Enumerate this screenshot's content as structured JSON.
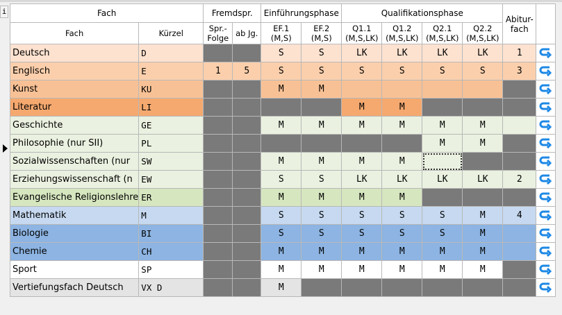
{
  "corner_label": "i",
  "header": {
    "fach_group": "Fach",
    "fach": "Fach",
    "kuerzel": "Kürzel",
    "fremdspr": "Fremdspr.",
    "spr_folge_1": "Spr.-",
    "spr_folge_2": "Folge",
    "ab_jg": "ab Jg.",
    "einfuehrung": "Einführungsphase",
    "ef1_a": "EF.1",
    "ef1_b": "(M,S)",
    "ef2_a": "EF.2",
    "ef2_b": "(M,S)",
    "qualifikation": "Qualifikationsphase",
    "q11_a": "Q1.1",
    "q11_b": "(M,S,LK)",
    "q12_a": "Q1.2",
    "q12_b": "(M,S,LK)",
    "q21_a": "Q2.1",
    "q21_b": "(M,S,LK)",
    "q22_a": "Q2.2",
    "q22_b": "(M,S,LK)",
    "abitur_1": "Abitur-",
    "abitur_2": "fach"
  },
  "rows": [
    {
      "fach": "Deutsch",
      "kz": "D",
      "sf": "",
      "jg": "",
      "ef1": "S",
      "ef2": "S",
      "q11": "LK",
      "q12": "LK",
      "q21": "LK",
      "q22": "LK",
      "abi": "1",
      "bg": "#fde2d0"
    },
    {
      "fach": "Englisch",
      "kz": "E",
      "sf": "1",
      "jg": "5",
      "ef1": "S",
      "ef2": "S",
      "q11": "S",
      "q12": "S",
      "q21": "S",
      "q22": "S",
      "abi": "3",
      "bg": "#fbcfac"
    },
    {
      "fach": "Kunst",
      "kz": "KU",
      "sf": "",
      "jg": "",
      "ef1": "M",
      "ef2": "M",
      "q11": "",
      "q12": "",
      "q21": "",
      "q22": "",
      "abi": "",
      "bg": "#f8c195"
    },
    {
      "fach": "Literatur",
      "kz": "LI",
      "sf": "",
      "jg": "",
      "ef1": "",
      "ef2": "",
      "q11": "M",
      "q12": "M",
      "q21": "",
      "q22": "",
      "abi": "",
      "bg": "#f5a96f"
    },
    {
      "fach": "Geschichte",
      "kz": "GE",
      "sf": "",
      "jg": "",
      "ef1": "M",
      "ef2": "M",
      "q11": "M",
      "q12": "M",
      "q21": "M",
      "q22": "M",
      "abi": "",
      "bg": "#eaf1e0"
    },
    {
      "fach": "Philosophie (nur SII)",
      "kz": "PL",
      "sf": "",
      "jg": "",
      "ef1": "",
      "ef2": "",
      "q11": "",
      "q12": "",
      "q21": "M",
      "q22": "M",
      "abi": "",
      "bg": "#eaf1e0"
    },
    {
      "fach": "Sozialwissenschaften (nur",
      "kz": "SW",
      "sf": "",
      "jg": "",
      "ef1": "M",
      "ef2": "M",
      "q11": "M",
      "q12": "M",
      "q21": "",
      "q22": "",
      "abi": "",
      "bg": "#eaf1e0"
    },
    {
      "fach": "Erziehungswissenschaft (n",
      "kz": "EW",
      "sf": "",
      "jg": "",
      "ef1": "S",
      "ef2": "S",
      "q11": "LK",
      "q12": "LK",
      "q21": "LK",
      "q22": "LK",
      "abi": "2",
      "bg": "#eaf1e0"
    },
    {
      "fach": "Evangelische Religionslehre",
      "kz": "ER",
      "sf": "",
      "jg": "",
      "ef1": "M",
      "ef2": "M",
      "q11": "M",
      "q12": "M",
      "q21": "",
      "q22": "",
      "abi": "",
      "bg": "#d6e6bf"
    },
    {
      "fach": "Mathematik",
      "kz": "M",
      "sf": "",
      "jg": "",
      "ef1": "S",
      "ef2": "S",
      "q11": "S",
      "q12": "S",
      "q21": "S",
      "q22": "M",
      "abi": "4",
      "bg": "#c6d9f0"
    },
    {
      "fach": "Biologie",
      "kz": "BI",
      "sf": "",
      "jg": "",
      "ef1": "S",
      "ef2": "S",
      "q11": "S",
      "q12": "S",
      "q21": "S",
      "q22": "M",
      "abi": "",
      "bg": "#8db4e2"
    },
    {
      "fach": "Chemie",
      "kz": "CH",
      "sf": "",
      "jg": "",
      "ef1": "M",
      "ef2": "M",
      "q11": "M",
      "q12": "M",
      "q21": "M",
      "q22": "M",
      "abi": "",
      "bg": "#8db4e2"
    },
    {
      "fach": "Sport",
      "kz": "SP",
      "sf": "",
      "jg": "",
      "ef1": "M",
      "ef2": "M",
      "q11": "M",
      "q12": "M",
      "q21": "M",
      "q22": "M",
      "abi": "",
      "bg": "#ffffff"
    },
    {
      "fach": "Vertiefungsfach Deutsch",
      "kz": "VX D",
      "sf": "",
      "jg": "",
      "ef1": "M",
      "ef2": "",
      "q11": "",
      "q12": "",
      "q21": "",
      "q22": "",
      "abi": "",
      "bg": "#e4e4e4"
    }
  ],
  "grey_cells": {
    "sf": [
      "Deutsch",
      "Kunst",
      "Literatur",
      "Geschichte",
      "Philosophie (nur SII)",
      "Sozialwissenschaften (nur",
      "Erziehungswissenschaft (n",
      "Evangelische Religionslehre",
      "Mathematik",
      "Biologie",
      "Chemie",
      "Sport",
      "Vertiefungsfach Deutsch"
    ],
    "ef": [
      "Literatur",
      "Philosophie (nur SII)"
    ],
    "ef2_only": [
      "Vertiefungsfach Deutsch"
    ],
    "q1": [
      "Philosophie (nur SII)",
      "Vertiefungsfach Deutsch"
    ],
    "q2": [
      "Literatur",
      "Evangelische Religionslehre",
      "Vertiefungsfach Deutsch"
    ],
    "q21_only": [
      "Sozialwissenschaften (nur"
    ],
    "abi": [
      "Kunst",
      "Literatur",
      "Philosophie (nur SII)",
      "Sozialwissenschaften (nur",
      "Evangelische Religionslehre",
      "Sport",
      "Vertiefungsfach Deutsch"
    ]
  },
  "row_action_icon": "undo-arrow-icon",
  "accent_color": "#1e88e5",
  "selected_row_index": 6
}
